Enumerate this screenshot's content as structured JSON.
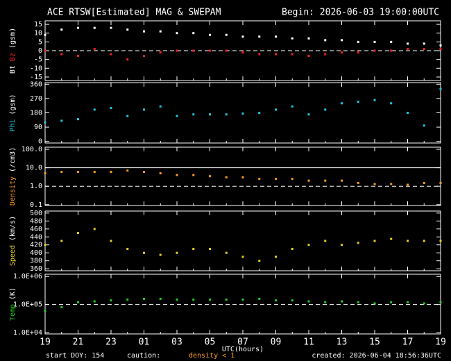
{
  "chart_data": [
    {
      "type": "scatter",
      "title": "ACE RTSW[Estimated] MAG & SWEPAM",
      "subtitle": "Begin: 2026-06-03 19:00:00UTC",
      "ylabel": "(gsm)",
      "x": [
        0,
        1,
        2,
        3,
        4,
        5,
        6,
        7,
        8,
        9,
        10,
        11,
        12,
        13,
        14,
        15,
        16,
        17,
        18,
        19,
        20,
        21,
        22,
        23,
        24
      ],
      "xlim": [
        0,
        24
      ],
      "ylim": [
        -17,
        17
      ],
      "yticks": [
        -15,
        -10,
        -5,
        0,
        5,
        10,
        15
      ],
      "hlines": [
        {
          "value": 0,
          "style": "dashed"
        }
      ],
      "series": [
        {
          "name": "Bt",
          "color": "#ffffff",
          "values": [
            9,
            12,
            13,
            13,
            13,
            12,
            11,
            11,
            10,
            10,
            9,
            9,
            8,
            8,
            8,
            7,
            7,
            6,
            6,
            5,
            5,
            5,
            4,
            4,
            3
          ]
        },
        {
          "name": "Bz",
          "color": "#ff2020",
          "values": [
            0,
            -2,
            -3,
            1,
            -2,
            -5,
            -3,
            -1,
            0,
            0,
            0,
            0,
            -1,
            -2,
            -2,
            -2,
            -3,
            -2,
            -1,
            -1,
            0,
            0,
            1,
            1,
            1
          ]
        }
      ]
    },
    {
      "type": "scatter",
      "ylabel": "(gsm)",
      "x": [
        0,
        1,
        2,
        3,
        4,
        5,
        6,
        7,
        8,
        9,
        10,
        11,
        12,
        13,
        14,
        15,
        16,
        17,
        18,
        19,
        20,
        21,
        22,
        23,
        24
      ],
      "xlim": [
        0,
        24
      ],
      "ylim": [
        -10,
        370
      ],
      "yticks": [
        0,
        90,
        180,
        270,
        360
      ],
      "hlines": [],
      "series": [
        {
          "name": "Phi",
          "color": "#20c8e0",
          "values": [
            120,
            130,
            140,
            200,
            210,
            160,
            200,
            220,
            160,
            170,
            170,
            170,
            175,
            180,
            200,
            220,
            170,
            200,
            240,
            250,
            260,
            240,
            180,
            100,
            330
          ]
        }
      ]
    },
    {
      "type": "scatter",
      "ylabel": "(/cm3)",
      "log": true,
      "x": [
        0,
        1,
        2,
        3,
        4,
        5,
        6,
        7,
        8,
        9,
        10,
        11,
        12,
        13,
        14,
        15,
        16,
        17,
        18,
        19,
        20,
        21,
        22,
        23,
        24
      ],
      "xlim": [
        0,
        24
      ],
      "ylim": [
        0.09,
        130
      ],
      "yticks": [
        0.1,
        {
          "value": 1,
          "label": "1.0"
        },
        {
          "value": 10,
          "label": "10.0"
        },
        {
          "value": 100,
          "label": "100.0"
        }
      ],
      "hlines": [
        {
          "value": 10,
          "style": "solid"
        },
        {
          "value": 1,
          "style": "dashed"
        }
      ],
      "series": [
        {
          "name": "Density",
          "color": "#ff9a20",
          "values": [
            5,
            6,
            6,
            6,
            6,
            7,
            6,
            5,
            4,
            4,
            3.5,
            3,
            3,
            2.5,
            2.5,
            2.5,
            2,
            2,
            2,
            1.5,
            1.3,
            1.3,
            1.2,
            1.5,
            1.5
          ]
        }
      ]
    },
    {
      "type": "scatter",
      "ylabel": "(km/s)",
      "x": [
        0,
        1,
        2,
        3,
        4,
        5,
        6,
        7,
        8,
        9,
        10,
        11,
        12,
        13,
        14,
        15,
        16,
        17,
        18,
        19,
        20,
        21,
        22,
        23,
        24
      ],
      "xlim": [
        0,
        24
      ],
      "ylim": [
        355,
        505
      ],
      "yticks": [
        360,
        380,
        400,
        420,
        440,
        460,
        480,
        500
      ],
      "hlines": [],
      "series": [
        {
          "name": "Speed",
          "color": "#e8d020",
          "values": [
            420,
            430,
            450,
            460,
            430,
            410,
            400,
            395,
            400,
            410,
            410,
            400,
            390,
            380,
            390,
            410,
            420,
            430,
            420,
            425,
            430,
            435,
            430,
            430,
            430
          ]
        }
      ]
    },
    {
      "type": "scatter",
      "ylabel": "(K)",
      "log": true,
      "xlabel": "UTC(hours)",
      "x": [
        0,
        1,
        2,
        3,
        4,
        5,
        6,
        7,
        8,
        9,
        10,
        11,
        12,
        13,
        14,
        15,
        16,
        17,
        18,
        19,
        20,
        21,
        22,
        23,
        24
      ],
      "xlim": [
        0,
        24
      ],
      "xticks": [
        {
          "value": 0,
          "label": "19"
        },
        {
          "value": 2,
          "label": "21"
        },
        {
          "value": 4,
          "label": "23"
        },
        {
          "value": 6,
          "label": "01"
        },
        {
          "value": 8,
          "label": "03"
        },
        {
          "value": 10,
          "label": "05"
        },
        {
          "value": 12,
          "label": "07"
        },
        {
          "value": 14,
          "label": "09"
        },
        {
          "value": 16,
          "label": "11"
        },
        {
          "value": 18,
          "label": "13"
        },
        {
          "value": 20,
          "label": "15"
        },
        {
          "value": 22,
          "label": "17"
        },
        {
          "value": 24,
          "label": "19"
        }
      ],
      "ylim": [
        9000,
        1200000
      ],
      "yticks": [
        {
          "value": 10000,
          "label": "1.0E+04"
        },
        {
          "value": 100000,
          "label": "1.0E+05"
        },
        {
          "value": 1000000,
          "label": "1.0E+06"
        }
      ],
      "hlines": [
        {
          "value": 100000,
          "style": "dashed"
        }
      ],
      "series": [
        {
          "name": "Temp",
          "color": "#20d020",
          "values": [
            60000,
            80000,
            120000,
            130000,
            140000,
            150000,
            160000,
            160000,
            150000,
            150000,
            150000,
            150000,
            150000,
            160000,
            140000,
            140000,
            130000,
            120000,
            130000,
            120000,
            110000,
            120000,
            120000,
            110000,
            120000
          ]
        }
      ]
    }
  ],
  "footer": {
    "start": "start DOY: 154",
    "caution": "caution:",
    "caution_note": "density < 1",
    "created": "created: 2026-06-04 18:56:36UTC"
  }
}
